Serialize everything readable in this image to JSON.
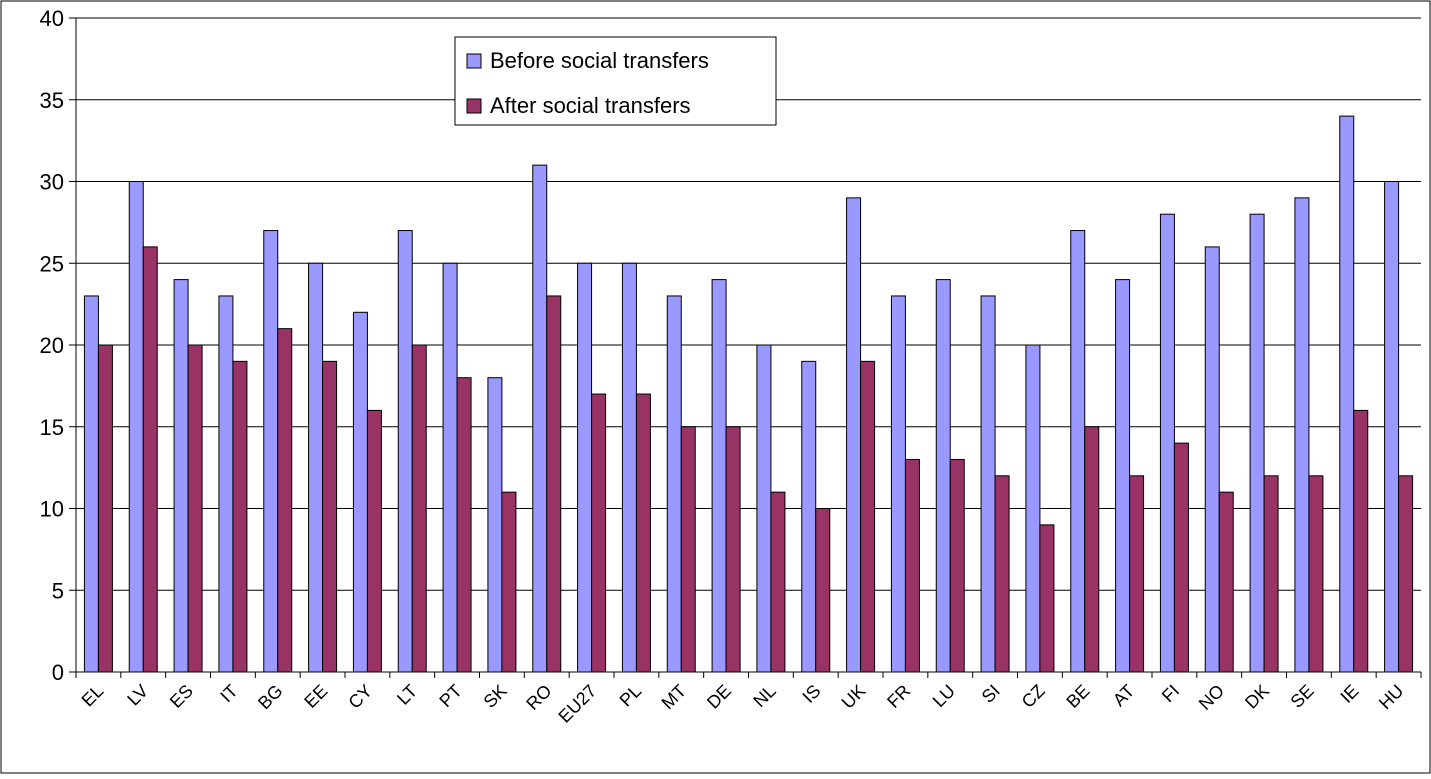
{
  "chart_data": {
    "type": "bar",
    "title": "",
    "xlabel": "",
    "ylabel": "",
    "ylim": [
      0,
      40
    ],
    "yticks": [
      0,
      5,
      10,
      15,
      20,
      25,
      30,
      35,
      40
    ],
    "grid": true,
    "legend_position": "top-center",
    "categories": [
      "EL",
      "LV",
      "ES",
      "IT",
      "BG",
      "EE",
      "CY",
      "LT",
      "PT",
      "SK",
      "RO",
      "EU27",
      "PL",
      "MT",
      "DE",
      "NL",
      "IS",
      "UK",
      "FR",
      "LU",
      "SI",
      "CZ",
      "BE",
      "AT",
      "FI",
      "NO",
      "DK",
      "SE",
      "IE",
      "HU"
    ],
    "series": [
      {
        "name": "Before social transfers",
        "color": "#9999ff",
        "values": [
          23,
          30,
          24,
          23,
          27,
          25,
          22,
          27,
          25,
          18,
          31,
          25,
          25,
          23,
          24,
          20,
          19,
          29,
          23,
          24,
          23,
          20,
          27,
          24,
          28,
          26,
          28,
          29,
          34,
          30
        ]
      },
      {
        "name": "After social transfers",
        "color": "#993366",
        "values": [
          20,
          26,
          20,
          19,
          21,
          19,
          16,
          20,
          18,
          11,
          23,
          17,
          17,
          15,
          15,
          11,
          10,
          19,
          13,
          13,
          12,
          9,
          15,
          12,
          14,
          11,
          12,
          12,
          16,
          12
        ]
      }
    ]
  }
}
